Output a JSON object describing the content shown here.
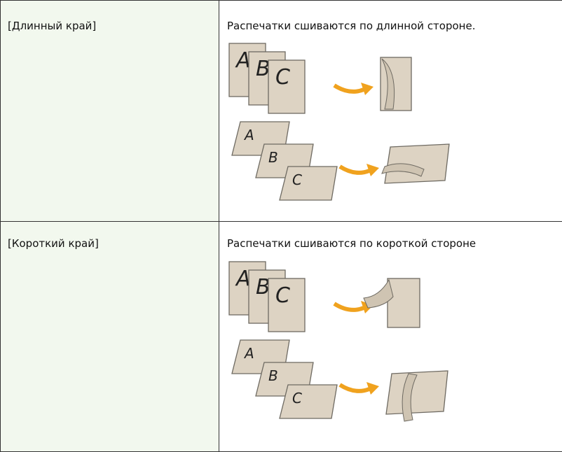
{
  "table": {
    "rows": [
      [
        "[Длинный край]",
        "Распечатки сшиваются по длинной стороне."
      ],
      [
        "[Короткий край]",
        "Распечатки сшиваются по короткой стороне"
      ]
    ]
  },
  "illustration_letters": [
    "A",
    "B",
    "C"
  ]
}
